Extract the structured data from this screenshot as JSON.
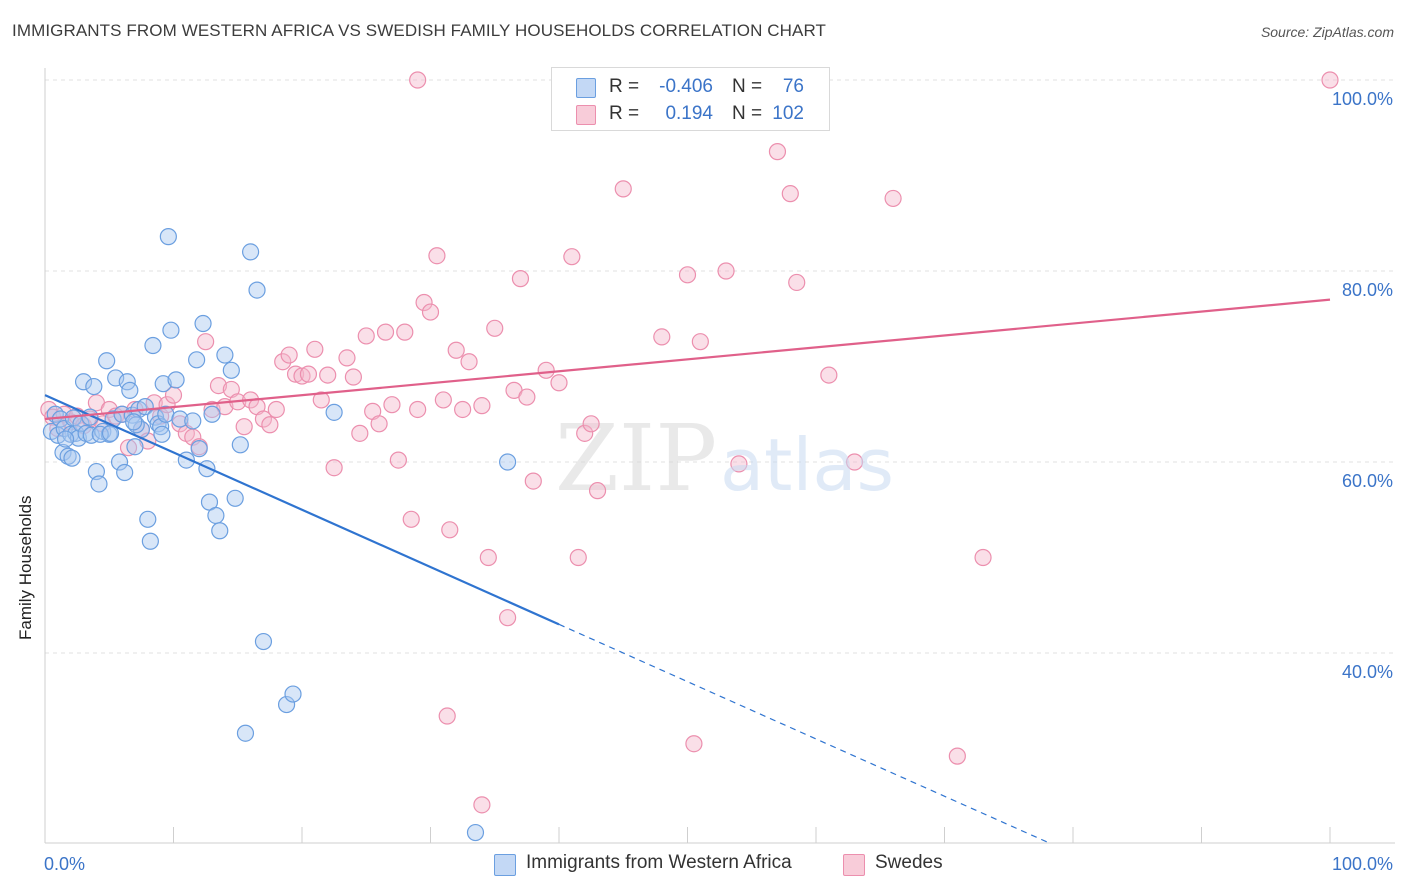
{
  "title": "IMMIGRANTS FROM WESTERN AFRICA VS SWEDISH FAMILY HOUSEHOLDS CORRELATION CHART",
  "source": "Source: ZipAtlas.com",
  "watermark": "ZIPatlas",
  "legend_top": [
    {
      "r_label": "R =",
      "r_value": "-0.406",
      "n_label": "N =",
      "n_value": "76"
    },
    {
      "r_label": "R =",
      "r_value": "0.194",
      "n_label": "N =",
      "n_value": "102"
    }
  ],
  "legend_bottom": [
    {
      "label": "Immigrants from Western Africa"
    },
    {
      "label": "Swedes"
    }
  ],
  "colors": {
    "blue_fill": "#a8c8f0",
    "blue_stroke": "#6b9fe0",
    "blue_line": "#2f74d0",
    "pink_fill": "#f5b8cc",
    "pink_stroke": "#ec8fae",
    "pink_line": "#e0608a",
    "tick_text": "#3b74c8",
    "grid": "#e0e0e0"
  },
  "chart_data": {
    "type": "scatter",
    "title": "IMMIGRANTS FROM WESTERN AFRICA VS SWEDISH FAMILY HOUSEHOLDS CORRELATION CHART",
    "xlabel": "",
    "ylabel": "Family Households",
    "xlim": [
      0,
      100
    ],
    "ylim": [
      21,
      102
    ],
    "x_tick_labels": [
      "0.0%",
      "100.0%"
    ],
    "y_ticks": [
      40,
      60,
      80,
      100
    ],
    "y_tick_labels": [
      "40.0%",
      "60.0%",
      "80.0%",
      "100.0%"
    ],
    "grid": true,
    "legend": "top-center",
    "series": [
      {
        "name": "Immigrants from Western Africa",
        "r": -0.406,
        "n": 76,
        "trend": {
          "x0": 0,
          "y0": 67.0,
          "x1": 40,
          "y1": 43.0,
          "dash_to_x": 78
        },
        "points": [
          [
            0.5,
            63.2
          ],
          [
            0.8,
            65.0
          ],
          [
            1.0,
            62.8
          ],
          [
            1.2,
            64.5
          ],
          [
            1.4,
            61.0
          ],
          [
            1.5,
            63.5
          ],
          [
            1.8,
            60.6
          ],
          [
            2.0,
            62.9
          ],
          [
            2.2,
            64.6
          ],
          [
            2.4,
            63.0
          ],
          [
            2.6,
            62.5
          ],
          [
            2.8,
            64.0
          ],
          [
            3.0,
            68.4
          ],
          [
            3.2,
            63.0
          ],
          [
            3.5,
            64.7
          ],
          [
            3.6,
            62.8
          ],
          [
            3.8,
            67.9
          ],
          [
            4.0,
            59.0
          ],
          [
            4.2,
            57.7
          ],
          [
            4.5,
            63.2
          ],
          [
            4.8,
            70.6
          ],
          [
            5.0,
            62.9
          ],
          [
            5.3,
            64.5
          ],
          [
            5.5,
            68.8
          ],
          [
            5.8,
            60.0
          ],
          [
            6.0,
            65.0
          ],
          [
            6.2,
            58.9
          ],
          [
            6.4,
            68.4
          ],
          [
            6.6,
            67.5
          ],
          [
            6.8,
            64.9
          ],
          [
            7.0,
            61.6
          ],
          [
            7.3,
            65.5
          ],
          [
            7.5,
            63.4
          ],
          [
            7.8,
            65.8
          ],
          [
            8.0,
            54.0
          ],
          [
            8.2,
            51.7
          ],
          [
            8.4,
            72.2
          ],
          [
            8.6,
            64.7
          ],
          [
            8.8,
            64.0
          ],
          [
            9.0,
            63.7
          ],
          [
            9.2,
            68.2
          ],
          [
            9.4,
            65.0
          ],
          [
            9.6,
            83.6
          ],
          [
            9.8,
            73.8
          ],
          [
            10.2,
            68.6
          ],
          [
            10.5,
            64.5
          ],
          [
            11.0,
            60.2
          ],
          [
            11.5,
            64.3
          ],
          [
            12.0,
            61.4
          ],
          [
            12.3,
            74.5
          ],
          [
            12.6,
            59.3
          ],
          [
            12.8,
            55.8
          ],
          [
            13.0,
            65.0
          ],
          [
            13.3,
            54.4
          ],
          [
            13.6,
            52.8
          ],
          [
            14.0,
            71.2
          ],
          [
            14.5,
            69.6
          ],
          [
            14.8,
            56.2
          ],
          [
            15.2,
            61.8
          ],
          [
            15.6,
            31.6
          ],
          [
            16.0,
            82.0
          ],
          [
            16.5,
            78.0
          ],
          [
            17.0,
            41.2
          ],
          [
            18.8,
            34.6
          ],
          [
            19.3,
            35.7
          ],
          [
            22.5,
            65.2
          ],
          [
            33.5,
            21.2
          ],
          [
            36.0,
            60.0
          ],
          [
            11.8,
            70.7
          ],
          [
            9.1,
            62.9
          ],
          [
            7.1,
            63.9
          ],
          [
            2.1,
            60.4
          ],
          [
            1.6,
            62.4
          ],
          [
            4.3,
            62.9
          ],
          [
            6.9,
            64.2
          ],
          [
            5.1,
            63.0
          ]
        ]
      },
      {
        "name": "Swedes",
        "r": 0.194,
        "n": 102,
        "trend": {
          "x0": 0,
          "y0": 64.5,
          "x1": 100,
          "y1": 77.0
        },
        "points": [
          [
            0.3,
            65.5
          ],
          [
            0.6,
            64.7
          ],
          [
            1.0,
            63.5
          ],
          [
            1.5,
            65.0
          ],
          [
            2.0,
            64.2
          ],
          [
            2.5,
            64.8
          ],
          [
            3.0,
            63.8
          ],
          [
            3.5,
            64.5
          ],
          [
            4.0,
            66.2
          ],
          [
            4.5,
            64.0
          ],
          [
            5.0,
            65.5
          ],
          [
            5.5,
            64.8
          ],
          [
            6.0,
            65.0
          ],
          [
            6.5,
            61.5
          ],
          [
            7.0,
            65.5
          ],
          [
            7.5,
            63.4
          ],
          [
            8.0,
            62.2
          ],
          [
            8.5,
            66.2
          ],
          [
            9.0,
            64.8
          ],
          [
            9.5,
            66.0
          ],
          [
            10.0,
            67.0
          ],
          [
            10.5,
            64.0
          ],
          [
            11.0,
            63.0
          ],
          [
            11.5,
            62.6
          ],
          [
            12.0,
            61.6
          ],
          [
            12.5,
            72.6
          ],
          [
            13.0,
            65.5
          ],
          [
            13.5,
            68.0
          ],
          [
            14.0,
            65.8
          ],
          [
            14.5,
            67.6
          ],
          [
            15.0,
            66.3
          ],
          [
            15.5,
            63.7
          ],
          [
            16.0,
            66.5
          ],
          [
            16.5,
            65.8
          ],
          [
            17.0,
            64.5
          ],
          [
            17.5,
            63.9
          ],
          [
            18.0,
            65.5
          ],
          [
            18.5,
            70.5
          ],
          [
            19.0,
            71.2
          ],
          [
            19.5,
            69.2
          ],
          [
            20.0,
            69.0
          ],
          [
            20.5,
            69.2
          ],
          [
            21.0,
            71.8
          ],
          [
            21.5,
            66.5
          ],
          [
            22.0,
            69.1
          ],
          [
            22.5,
            59.4
          ],
          [
            23.5,
            70.9
          ],
          [
            24.0,
            68.9
          ],
          [
            24.5,
            63.0
          ],
          [
            25.0,
            73.2
          ],
          [
            25.5,
            65.3
          ],
          [
            26.0,
            64.0
          ],
          [
            26.5,
            73.6
          ],
          [
            27.0,
            66.0
          ],
          [
            27.5,
            60.2
          ],
          [
            28.0,
            73.6
          ],
          [
            28.5,
            54.0
          ],
          [
            29.0,
            65.5
          ],
          [
            29.5,
            76.7
          ],
          [
            30.0,
            75.7
          ],
          [
            30.5,
            81.6
          ],
          [
            31.0,
            66.5
          ],
          [
            31.5,
            52.9
          ],
          [
            32.0,
            71.7
          ],
          [
            32.5,
            65.5
          ],
          [
            33.0,
            70.5
          ],
          [
            34.0,
            65.9
          ],
          [
            34.5,
            50.0
          ],
          [
            35.0,
            74.0
          ],
          [
            36.0,
            43.7
          ],
          [
            36.5,
            67.5
          ],
          [
            37.0,
            79.2
          ],
          [
            37.5,
            66.8
          ],
          [
            38.0,
            58.0
          ],
          [
            39.0,
            69.6
          ],
          [
            40.0,
            68.3
          ],
          [
            41.0,
            81.5
          ],
          [
            41.5,
            50.0
          ],
          [
            42.0,
            63.0
          ],
          [
            42.5,
            64.0
          ],
          [
            43.0,
            57.0
          ],
          [
            45.0,
            88.6
          ],
          [
            47.0,
            100.0
          ],
          [
            48.0,
            73.1
          ],
          [
            50.0,
            79.6
          ],
          [
            50.5,
            30.5
          ],
          [
            51.0,
            72.6
          ],
          [
            53.0,
            80.0
          ],
          [
            54.0,
            59.8
          ],
          [
            57.0,
            92.5
          ],
          [
            58.0,
            88.1
          ],
          [
            58.5,
            78.8
          ],
          [
            60.0,
            100.0
          ],
          [
            61.0,
            69.1
          ],
          [
            63.0,
            60.0
          ],
          [
            66.0,
            87.6
          ],
          [
            71.0,
            29.2
          ],
          [
            73.0,
            50.0
          ],
          [
            100.0,
            100.0
          ],
          [
            31.3,
            33.4
          ],
          [
            34.0,
            24.1
          ],
          [
            29.0,
            100.0
          ]
        ]
      }
    ]
  }
}
